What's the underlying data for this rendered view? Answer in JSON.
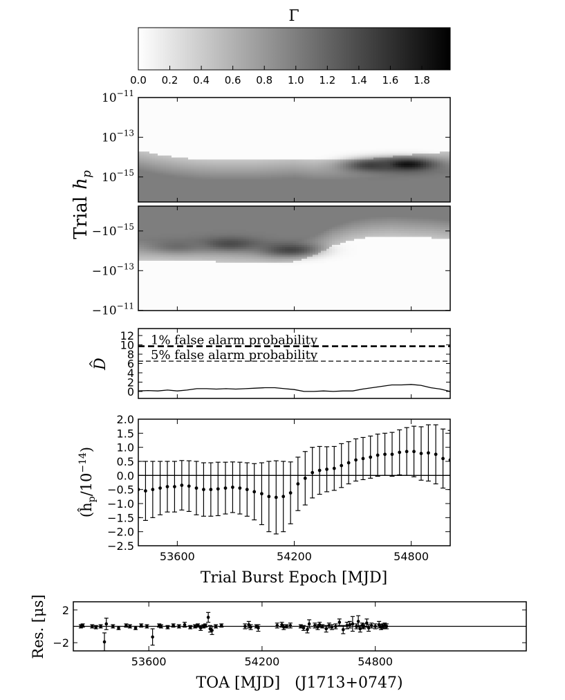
{
  "chart_data": [
    {
      "type": "colorbar",
      "label": "Γ",
      "ticks": [
        "0.0",
        "0.2",
        "0.4",
        "0.6",
        "0.8",
        "1.0",
        "1.2",
        "1.4",
        "1.6",
        "1.8"
      ],
      "range": [
        0,
        1.98
      ],
      "colormap": "white-to-black grayscale"
    },
    {
      "type": "heatmap",
      "ylabel_text": "Trial",
      "ylabel_math": "h",
      "ylabel_sub": "p",
      "xlim": [
        53400,
        55000
      ],
      "upper_panel": {
        "y_ticks": [
          {
            "base": "10",
            "exp": "−11"
          },
          {
            "base": "10",
            "exp": "−13"
          },
          {
            "base": "10",
            "exp": "−15"
          }
        ],
        "scale": "log"
      },
      "lower_panel": {
        "y_ticks": [
          {
            "base": "−10",
            "exp": "−15"
          },
          {
            "base": "−10",
            "exp": "−13"
          },
          {
            "base": "−10",
            "exp": "−11"
          }
        ],
        "scale": "log (negative amplitudes)"
      },
      "upper_boundary_log10": [
        [
          53400,
          -13.7
        ],
        [
          53500,
          -13.9
        ],
        [
          53600,
          -14.05
        ],
        [
          53700,
          -14.15
        ],
        [
          53800,
          -14.2
        ],
        [
          53900,
          -14.2
        ],
        [
          54000,
          -14.2
        ],
        [
          54100,
          -14.15
        ],
        [
          54200,
          -14.1
        ],
        [
          54300,
          -14.2
        ],
        [
          54400,
          -14.2
        ],
        [
          54500,
          -14.15
        ],
        [
          54600,
          -14.1
        ],
        [
          54700,
          -14.0
        ],
        [
          54800,
          -13.9
        ],
        [
          54900,
          -13.85
        ],
        [
          55000,
          -13.75
        ]
      ],
      "upper_blobs": [
        {
          "center": [
            54780,
            -14.4
          ],
          "level": 1.85
        },
        {
          "center": [
            54600,
            -14.45
          ],
          "level": 1.5
        }
      ],
      "lower_boundary_log10": [
        [
          53400,
          -13.6
        ],
        [
          53500,
          -13.6
        ],
        [
          53600,
          -13.55
        ],
        [
          53700,
          -13.55
        ],
        [
          53800,
          -13.5
        ],
        [
          53900,
          -13.45
        ],
        [
          54000,
          -13.45
        ],
        [
          54100,
          -13.4
        ],
        [
          54200,
          -13.5
        ],
        [
          54300,
          -13.8
        ],
        [
          54400,
          -14.3
        ],
        [
          54500,
          -14.6
        ],
        [
          54600,
          -14.75
        ],
        [
          54700,
          -14.8
        ],
        [
          54800,
          -14.75
        ],
        [
          54900,
          -14.7
        ],
        [
          55000,
          -14.6
        ]
      ],
      "lower_blobs": [
        {
          "center": [
            53870,
            -14.4
          ],
          "level": 1.4
        },
        {
          "center": [
            54180,
            -14.1
          ],
          "level": 1.45
        },
        {
          "center": [
            53600,
            -14.3
          ],
          "level": 1.15
        }
      ]
    },
    {
      "type": "line",
      "ylabel_math": "D",
      "ylim": [
        -1.5,
        13.5
      ],
      "y_ticks": [
        "12",
        "10",
        "8",
        "6",
        "4",
        "2",
        "0"
      ],
      "xlim": [
        53400,
        55000
      ],
      "thresholds": [
        {
          "label": "1% false alarm probability",
          "value": 9.7
        },
        {
          "label": "5% false alarm probability",
          "value": 6.5
        }
      ],
      "x": [
        53400,
        53450,
        53500,
        53550,
        53600,
        53650,
        53700,
        53750,
        53800,
        53850,
        53900,
        53950,
        54000,
        54050,
        54100,
        54150,
        54200,
        54250,
        54300,
        54350,
        54400,
        54450,
        54500,
        54550,
        54600,
        54650,
        54700,
        54750,
        54800,
        54850,
        54900,
        54950,
        55000
      ],
      "y": [
        0.1,
        0.2,
        0.1,
        0.3,
        0.1,
        0.3,
        0.6,
        0.6,
        0.5,
        0.6,
        0.5,
        0.6,
        0.7,
        0.8,
        0.8,
        0.6,
        0.4,
        0.0,
        0.0,
        0.1,
        0.0,
        0.1,
        0.1,
        0.5,
        0.8,
        1.1,
        1.4,
        1.4,
        1.5,
        1.3,
        0.8,
        0.5,
        0.0
      ]
    },
    {
      "type": "scatter",
      "ylabel_math": "(ĥ",
      "ylabel_sub": "p",
      "ylabel_rest": "/10",
      "ylabel_exp": "−14",
      "ylabel_close": ")",
      "ylim": [
        -2.5,
        2.0
      ],
      "y_ticks": [
        "2.0",
        "1.5",
        "1.0",
        "0.5",
        "0.0",
        "−0.5",
        "−1.0",
        "−1.5",
        "−2.0",
        "−2.5"
      ],
      "xlim": [
        53400,
        55000
      ],
      "x_ticks": [
        "53600",
        "54200",
        "54800"
      ],
      "xlabel": "Trial Burst Epoch [MJD]",
      "x": [
        53400,
        53437,
        53474,
        53512,
        53549,
        53586,
        53623,
        53660,
        53698,
        53735,
        53772,
        53809,
        53847,
        53884,
        53921,
        53958,
        53995,
        54033,
        54070,
        54107,
        54144,
        54181,
        54219,
        54256,
        54293,
        54330,
        54367,
        54405,
        54442,
        54479,
        54516,
        54553,
        54591,
        54628,
        54665,
        54702,
        54740,
        54777,
        54814,
        54851,
        54888,
        54926,
        54963,
        55000
      ],
      "y": [
        -0.5,
        -0.55,
        -0.5,
        -0.45,
        -0.4,
        -0.4,
        -0.35,
        -0.38,
        -0.45,
        -0.5,
        -0.5,
        -0.48,
        -0.45,
        -0.42,
        -0.45,
        -0.5,
        -0.58,
        -0.65,
        -0.75,
        -0.78,
        -0.75,
        -0.62,
        -0.3,
        -0.1,
        0.1,
        0.18,
        0.22,
        0.25,
        0.35,
        0.45,
        0.55,
        0.6,
        0.65,
        0.72,
        0.75,
        0.75,
        0.82,
        0.85,
        0.85,
        0.78,
        0.8,
        0.75,
        0.6,
        0.55
      ],
      "err": [
        1.0,
        1.05,
        1.0,
        0.95,
        0.9,
        0.9,
        0.88,
        0.9,
        0.95,
        0.95,
        0.95,
        0.95,
        0.92,
        0.9,
        0.92,
        0.95,
        1.0,
        1.1,
        1.25,
        1.3,
        1.25,
        1.1,
        0.95,
        0.95,
        0.9,
        0.85,
        0.8,
        0.78,
        0.78,
        0.75,
        0.75,
        0.75,
        0.75,
        0.75,
        0.75,
        0.78,
        0.8,
        0.85,
        0.9,
        0.95,
        1.0,
        1.05,
        1.05,
        1.05
      ]
    },
    {
      "type": "scatter",
      "ylabel": "Res. [μs]",
      "ylim": [
        -3,
        3
      ],
      "y_ticks": [
        "2",
        "−2"
      ],
      "xlim": [
        53200,
        55600
      ],
      "x_ticks": [
        "53600",
        "54200",
        "54800"
      ],
      "xlabel": "TOA [MJD]   (J1713+0747)",
      "x": [
        53240,
        53250,
        53300,
        53320,
        53345,
        53365,
        53375,
        53410,
        53440,
        53480,
        53500,
        53530,
        53560,
        53590,
        53620,
        53655,
        53665,
        53700,
        53730,
        53760,
        53790,
        53820,
        53845,
        53860,
        53875,
        53890,
        53900,
        53915,
        53925,
        53935,
        53955,
        53985,
        54110,
        54130,
        54140,
        54170,
        54180,
        54280,
        54305,
        54315,
        54330,
        54350,
        54405,
        54420,
        54440,
        54450,
        54480,
        54495,
        54505,
        54520,
        54540,
        54555,
        54570,
        54590,
        54610,
        54630,
        54650,
        54665,
        54680,
        54700,
        54710,
        54720,
        54730,
        54740,
        54755,
        54765,
        54780,
        54800,
        54820,
        54830,
        54840,
        54850,
        54860
      ],
      "y": [
        0,
        0.1,
        0,
        -0.1,
        0,
        -1.9,
        0.3,
        0,
        -0.2,
        0.1,
        0,
        -0.2,
        0.1,
        0,
        -1.3,
        0.1,
        0,
        -0.1,
        0.1,
        0,
        0.2,
        -0.1,
        0,
        0.1,
        -0.2,
        0,
        0.1,
        1.1,
        -0.3,
        -0.5,
        0,
        0.1,
        0,
        0.2,
        -0.1,
        0,
        -0.2,
        0.1,
        0.2,
        -0.1,
        0,
        0.1,
        0,
        -0.2,
        -0.4,
        0.3,
        0.1,
        -0.1,
        0.2,
        0,
        -0.3,
        0.1,
        -0.1,
        0,
        0.5,
        -0.4,
        0.1,
        0.2,
        0.3,
        0,
        0.6,
        -0.3,
        0.1,
        0,
        0.4,
        -0.2,
        0.1,
        0,
        0.2,
        -0.1,
        0,
        0.1,
        0
      ],
      "err": [
        0.2,
        0.2,
        0.2,
        0.2,
        0.2,
        1.1,
        0.7,
        0.2,
        0.2,
        0.2,
        0.2,
        0.2,
        0.2,
        0.2,
        1.0,
        0.2,
        0.2,
        0.2,
        0.2,
        0.2,
        0.3,
        0.2,
        0.2,
        0.2,
        0.3,
        0.2,
        0.2,
        0.6,
        0.4,
        0.5,
        0.2,
        0.2,
        0.3,
        0.4,
        0.3,
        0.2,
        0.4,
        0.3,
        0.3,
        0.3,
        0.2,
        0.3,
        0.2,
        0.3,
        0.4,
        0.5,
        0.3,
        0.3,
        0.3,
        0.2,
        0.4,
        0.3,
        0.3,
        0.3,
        0.4,
        0.5,
        0.4,
        0.4,
        0.9,
        0.3,
        0.7,
        0.4,
        0.3,
        0.3,
        0.5,
        0.4,
        0.3,
        0.3,
        0.4,
        0.3,
        0.3,
        0.3,
        0.3
      ]
    }
  ]
}
